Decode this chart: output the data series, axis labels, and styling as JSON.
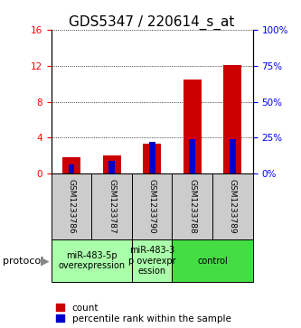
{
  "title": "GDS5347 / 220614_s_at",
  "samples": [
    "GSM1233786",
    "GSM1233787",
    "GSM1233790",
    "GSM1233788",
    "GSM1233789"
  ],
  "count_values": [
    1.8,
    2.0,
    3.3,
    10.5,
    12.1
  ],
  "percentile_values": [
    6.5,
    9.0,
    22.0,
    24.0,
    24.0
  ],
  "left_ylim": [
    0,
    16
  ],
  "left_yticks": [
    0,
    4,
    8,
    12,
    16
  ],
  "right_ylim": [
    0,
    100
  ],
  "right_yticks": [
    0,
    25,
    50,
    75,
    100
  ],
  "count_color": "#cc0000",
  "percentile_color": "#0000cc",
  "sample_box_color": "#cccccc",
  "group_defs": [
    {
      "start": 0,
      "end": 1,
      "label": "miR-483-5p\noverexpression",
      "color": "#aaffaa"
    },
    {
      "start": 2,
      "end": 2,
      "label": "miR-483-3\np overexpr\nession",
      "color": "#aaffaa"
    },
    {
      "start": 3,
      "end": 4,
      "label": "control",
      "color": "#44dd44"
    }
  ],
  "protocol_label": "protocol",
  "legend_count_label": "count",
  "legend_percentile_label": "percentile rank within the sample",
  "title_fontsize": 11,
  "tick_fontsize": 7.5,
  "legend_fontsize": 7.5,
  "sample_fontsize": 6.5,
  "proto_fontsize": 7.0
}
